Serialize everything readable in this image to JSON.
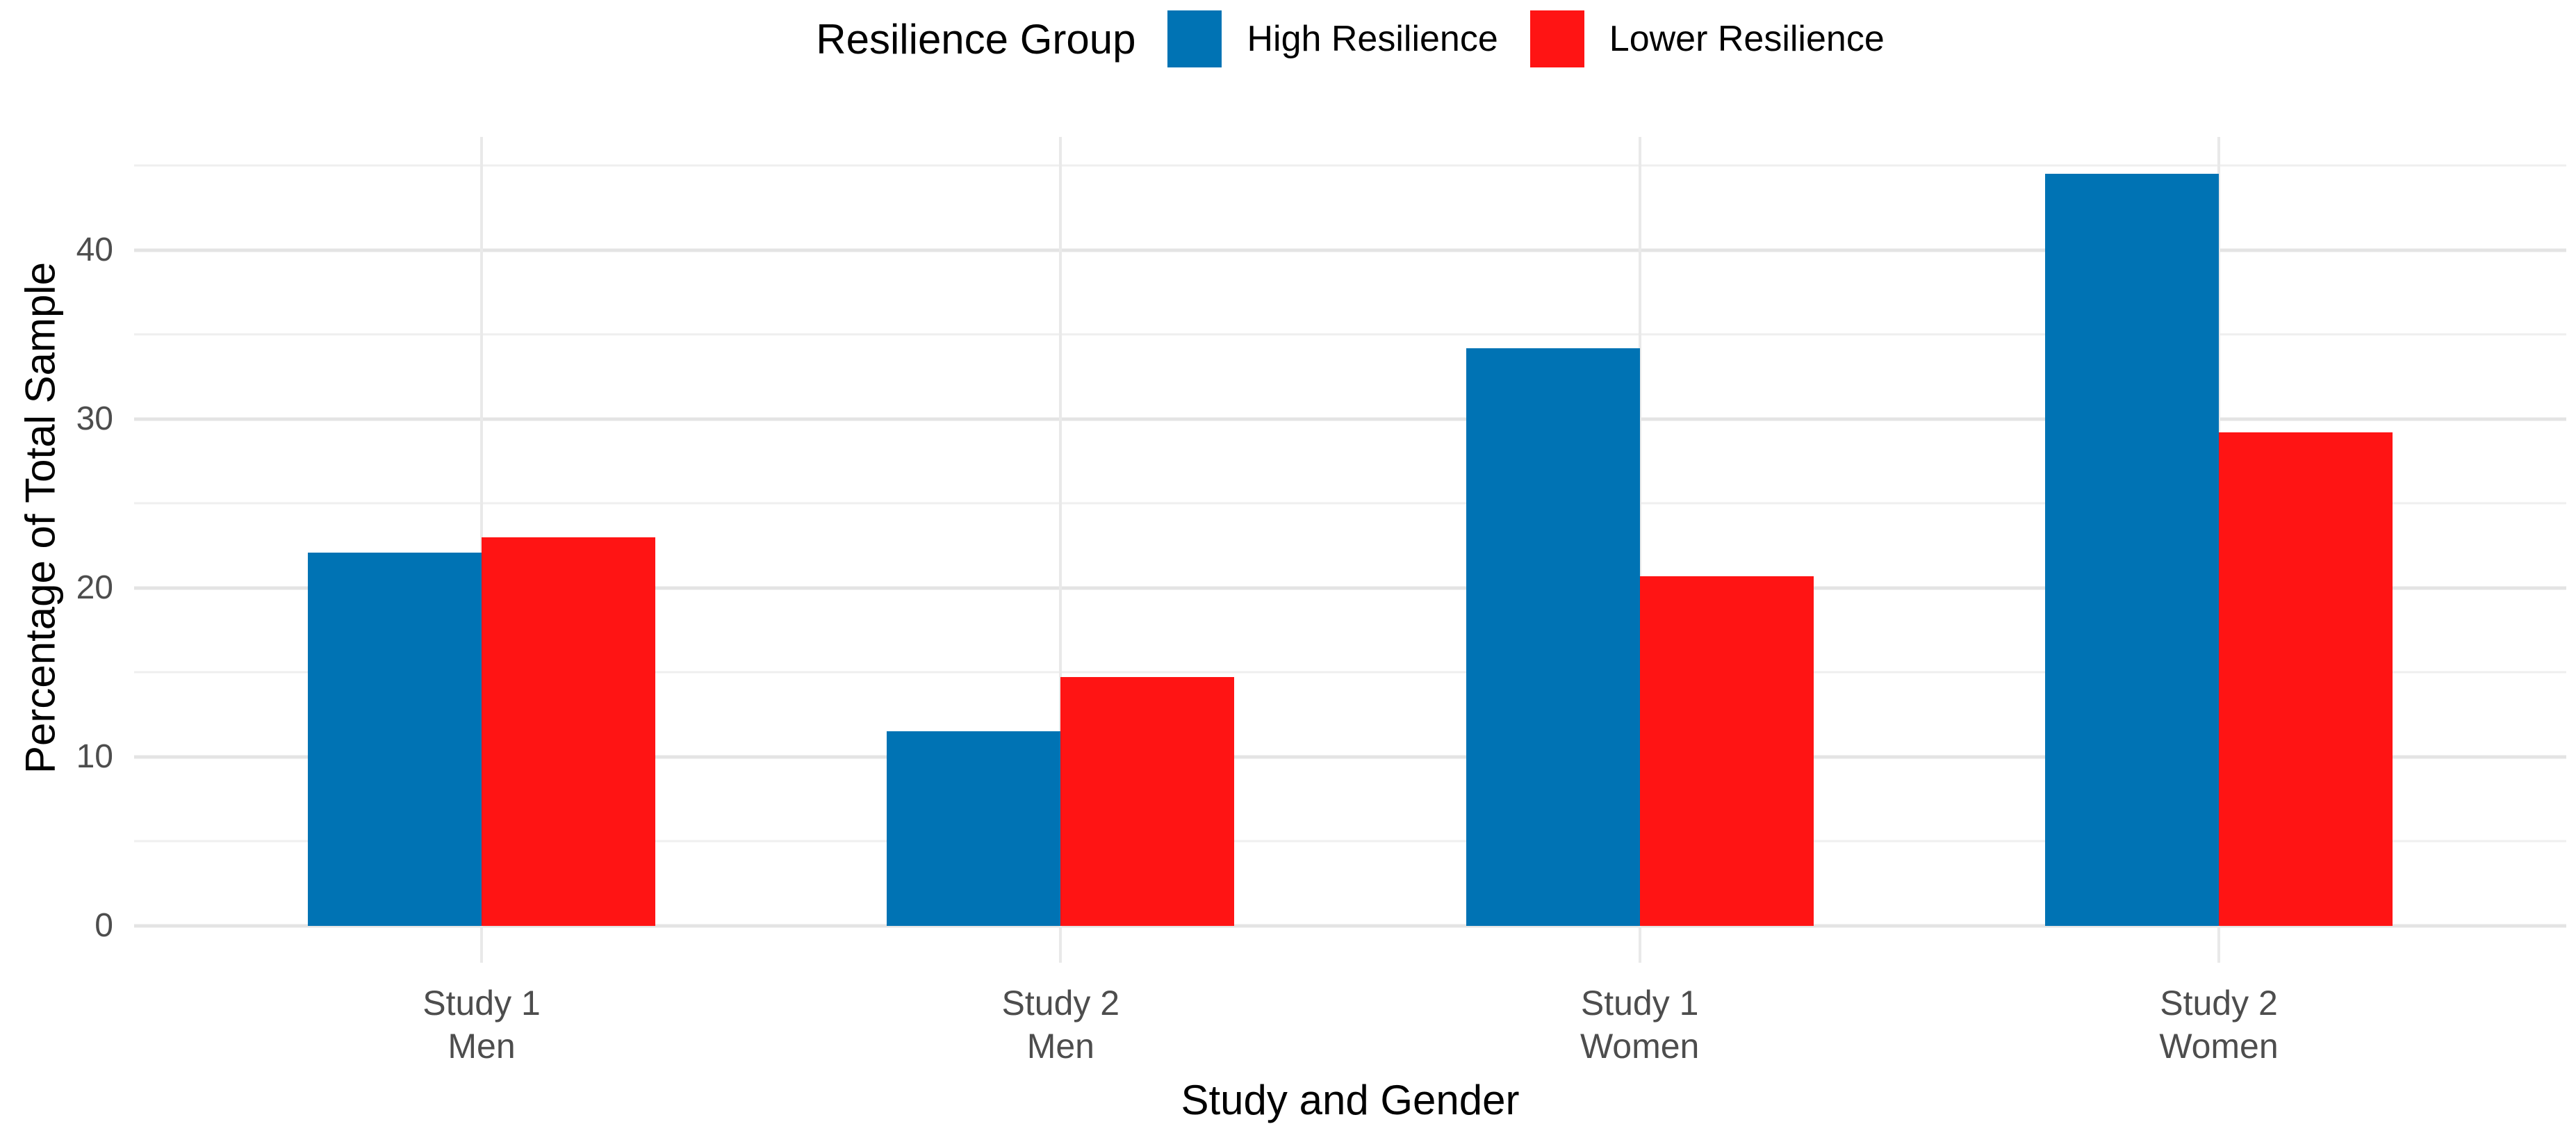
{
  "legend": {
    "title": "Resilience Group",
    "items": [
      {
        "label": "High Resilience",
        "color": "#0073B4"
      },
      {
        "label": "Lower Resilience",
        "color": "#FF1414"
      }
    ]
  },
  "chart_data": {
    "type": "bar",
    "title": "",
    "xlabel": "Study and Gender",
    "ylabel": "Percentage of Total Sample",
    "categories": [
      "Study 1\nMen",
      "Study 2\nMen",
      "Study 1\nWomen",
      "Study 2\nWomen"
    ],
    "series": [
      {
        "name": "High Resilience",
        "color": "#0073B4",
        "values": [
          22.1,
          11.5,
          34.2,
          44.5
        ]
      },
      {
        "name": "Lower Resilience",
        "color": "#FF1414",
        "values": [
          23.0,
          14.7,
          20.7,
          29.2
        ]
      }
    ],
    "y_ticks": [
      0,
      10,
      20,
      30,
      40
    ],
    "y_minor_ticks": [
      5,
      15,
      25,
      35,
      45
    ],
    "ylim": [
      -2.2,
      46.7
    ],
    "bar_width_fraction": 0.3,
    "group_slot_units": 4.2,
    "grid": true,
    "legend_position": "top",
    "colors": {
      "grid_major": "#e4e4e4",
      "grid_minor": "#efefef",
      "grid_vertical": "#e9e9e9",
      "axis_text": "#4d4d4d",
      "title_text": "#000000",
      "background": "#ffffff"
    }
  }
}
